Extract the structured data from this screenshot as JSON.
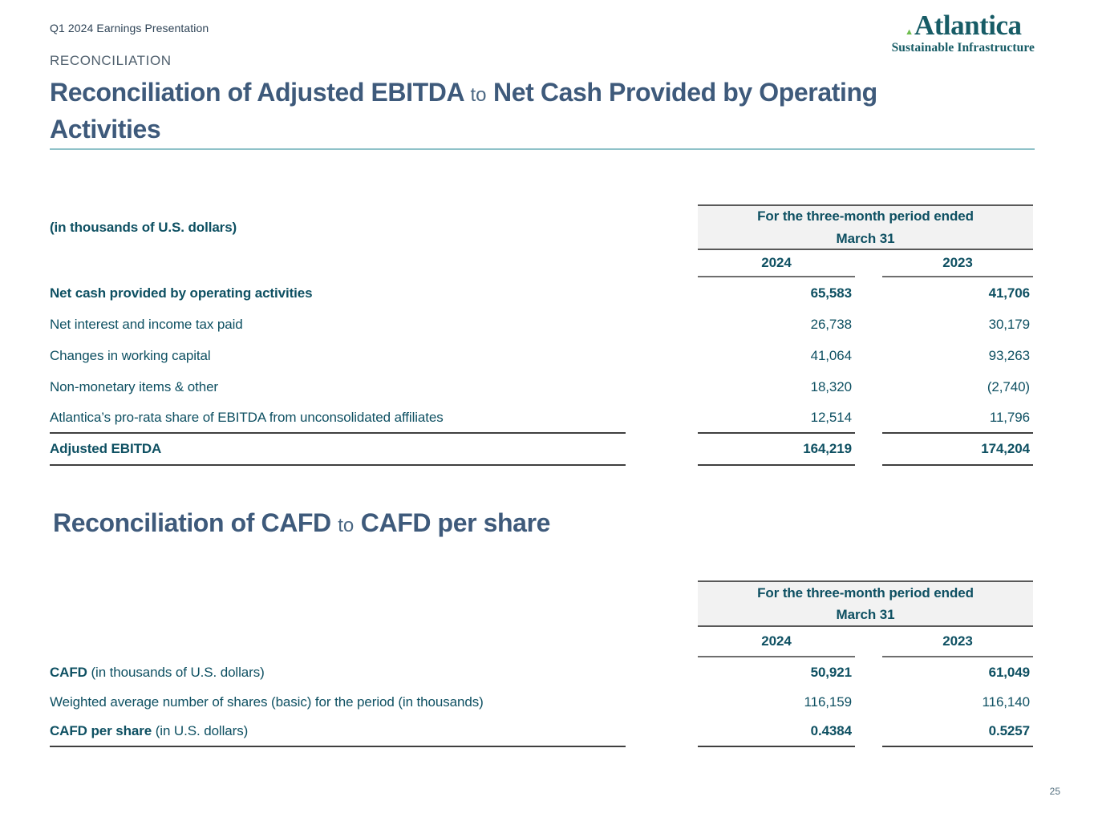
{
  "header": {
    "eyebrow": "Q1 2024 Earnings Presentation",
    "section_label": "RECONCILIATION",
    "page_number": "25"
  },
  "logo": {
    "wordmark": "Atlantica",
    "tagline": "Sustainable Infrastructure",
    "triangle_icon": "▲"
  },
  "colors": {
    "title_color": "#3E5A7B",
    "table_text": "#0E5062",
    "rule_teal": "#8FC2C9",
    "box_fill": "#F2F2F2",
    "logo_color": "#175C66",
    "logo_triangle": "#6FBE4F"
  },
  "titles": {
    "ebitda": {
      "lead": "Reconciliation of Adjusted EBITDA",
      "connector": "to",
      "tail": "Net Cash Provided by Operating Activities"
    },
    "cafd": {
      "lead": "Reconciliation of CAFD",
      "connector": "to",
      "tail": "CAFD per share"
    }
  },
  "tables": {
    "ebitda": {
      "units_label": "(in thousands of U.S. dollars)",
      "period_header": {
        "line1": "For the three-month period ended",
        "line2": "March 31"
      },
      "columns": [
        "2024",
        "2023"
      ],
      "rows": [
        {
          "label_strong": "Net cash provided by operating activities",
          "label_regular": "",
          "values": [
            "65,583",
            "41,706"
          ],
          "values_strong": true,
          "rule_bottom": false
        },
        {
          "label_strong": "",
          "label_regular": "Net interest and income tax paid",
          "values": [
            "26,738",
            "30,179"
          ],
          "values_strong": false,
          "rule_bottom": false
        },
        {
          "label_strong": "",
          "label_regular": "Changes in working capital",
          "values": [
            "41,064",
            "93,263"
          ],
          "values_strong": false,
          "rule_bottom": false
        },
        {
          "label_strong": "",
          "label_regular": "Non-monetary items & other",
          "values": [
            "18,320",
            "(2,740)"
          ],
          "values_strong": false,
          "rule_bottom": false
        },
        {
          "label_strong": "",
          "label_regular": "Atlantica’s pro-rata share of EBITDA from unconsolidated affiliates",
          "values": [
            "12,514",
            "11,796"
          ],
          "values_strong": false,
          "rule_bottom": true
        },
        {
          "label_strong": "Adjusted EBITDA",
          "label_regular": "",
          "values": [
            "164,219",
            "174,204"
          ],
          "values_strong": true,
          "rule_bottom": true
        }
      ]
    },
    "cafd": {
      "units_label": "",
      "period_header": {
        "line1": "For the three-month period ended",
        "line2": "March 31"
      },
      "columns": [
        "2024",
        "2023"
      ],
      "rows": [
        {
          "label_strong": "CAFD",
          "label_regular": "(in thousands of U.S. dollars)",
          "values": [
            "50,921",
            "61,049"
          ],
          "values_strong": true,
          "rule_bottom": false
        },
        {
          "label_strong": "",
          "label_regular": "Weighted average number of shares (basic) for the period (in thousands)",
          "values": [
            "116,159",
            "116,140"
          ],
          "values_strong": false,
          "rule_bottom": false
        },
        {
          "label_strong": "CAFD per share",
          "label_regular": "(in U.S. dollars)",
          "values": [
            "0.4384",
            "0.5257"
          ],
          "values_strong": true,
          "rule_bottom": true
        }
      ]
    }
  }
}
